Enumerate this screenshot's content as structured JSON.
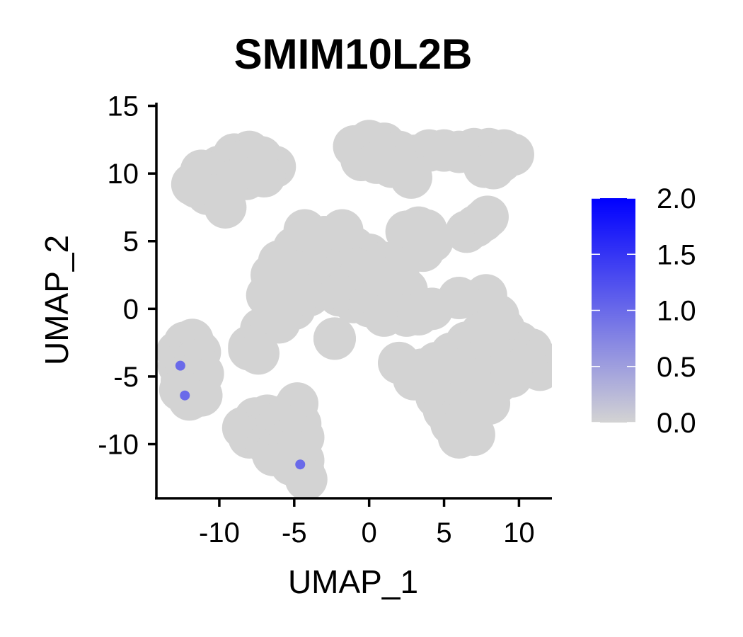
{
  "chart_data": {
    "type": "scatter",
    "title": "SMIM10L2B",
    "xlabel": "UMAP_1",
    "ylabel": "UMAP_2",
    "xlim": [
      -14.2,
      12.2
    ],
    "ylim": [
      -14.0,
      15.5
    ],
    "xticks": [
      -10,
      -5,
      0,
      5,
      10
    ],
    "yticks": [
      15,
      10,
      5,
      0,
      -5,
      -10
    ],
    "xtick_labels": [
      "-10",
      "-5",
      "0",
      "5",
      "10"
    ],
    "ytick_labels": [
      "15",
      "10",
      "5",
      "0",
      "-5",
      "-10"
    ],
    "grid": false,
    "legend_position": "right",
    "colorbar": {
      "min": 0.0,
      "max": 2.0,
      "ticks": [
        2.0,
        1.5,
        1.0,
        0.5,
        0.0
      ],
      "tick_labels": [
        "2.0",
        "1.5",
        "1.0",
        "0.5",
        "0.0"
      ],
      "color_low": "#d3d3d3",
      "color_high": "#0000ff"
    },
    "background_color": "#d3d3d3",
    "clusters": [
      {
        "x": [
          -11.0,
          -10.0,
          -9.0,
          -8.0,
          -7.2,
          -6.3,
          -11.5,
          -10.5,
          -9.5,
          -8.5,
          -7.5,
          -11.2,
          -10.2,
          -9.2,
          -8.2,
          -10.8,
          -9.8,
          -7.0,
          -11.8,
          -9.6
        ],
        "y": [
          9.5,
          10.5,
          11.4,
          11.6,
          11.2,
          10.5,
          9.0,
          10.0,
          10.6,
          10.9,
          10.8,
          10.2,
          9.8,
          9.4,
          9.6,
          8.5,
          8.2,
          9.8,
          9.2,
          7.5
        ]
      },
      {
        "x": [
          -1.0,
          0.0,
          1.0,
          2.0,
          3.0,
          4.0,
          5.0,
          6.0,
          7.0,
          8.0,
          9.0,
          9.6,
          -0.5,
          0.5,
          1.5,
          2.5,
          2.8,
          7.7,
          8.3,
          8.8
        ],
        "y": [
          12.0,
          12.4,
          12.2,
          11.6,
          11.3,
          11.7,
          11.7,
          11.6,
          11.8,
          11.8,
          11.7,
          11.4,
          11.0,
          10.8,
          10.5,
          10.2,
          9.7,
          10.5,
          10.4,
          10.9
        ]
      },
      {
        "x": [
          -6.5,
          -6.0,
          -5.0,
          -4.0,
          -3.0,
          -2.0,
          -1.0,
          0.0,
          1.0,
          2.0,
          -5.5,
          -4.5,
          -3.5,
          -2.5,
          -1.5,
          -0.5,
          0.5,
          1.5,
          2.5,
          -6.8,
          -5.8,
          -7.2,
          -8.0,
          -6.0,
          -5.0,
          -4.0,
          -3.0,
          -2.0,
          -1.0,
          0.0,
          1.0,
          2.5,
          3.3,
          -4.3,
          -1.8,
          -2.3
        ],
        "y": [
          2.5,
          3.5,
          4.5,
          5.0,
          5.3,
          5.2,
          4.5,
          4.0,
          3.4,
          3.2,
          2.0,
          3.0,
          3.8,
          4.0,
          3.3,
          2.8,
          2.4,
          2.0,
          1.4,
          1.0,
          0.5,
          -1.5,
          -3.0,
          -1.0,
          0.0,
          1.0,
          1.5,
          1.0,
          0.5,
          0.2,
          -0.5,
          -0.5,
          -0.4,
          5.8,
          5.8,
          -2.2
        ]
      },
      {
        "x": [
          2.5,
          3.3,
          3.8,
          4.2,
          2.9,
          3.6
        ],
        "y": [
          5.7,
          6.0,
          5.8,
          5.0,
          4.4,
          4.3
        ]
      },
      {
        "x": [
          6.5,
          7.1,
          7.6,
          7.9
        ],
        "y": [
          5.7,
          6.1,
          6.5,
          6.8
        ]
      },
      {
        "x": [
          3.5,
          4.5,
          5.5,
          6.5,
          7.5,
          8.0,
          9.0,
          10.0,
          10.8,
          11.3,
          11.4,
          3.0,
          4.0,
          5.0,
          6.0,
          7.0,
          8.5,
          9.5,
          10.5,
          4.5,
          5.5,
          6.5,
          7.5,
          8.5,
          9.5,
          5.0,
          6.0,
          7.0,
          8.0,
          5.5,
          6.5,
          6.0,
          7.0,
          6.5,
          7.8,
          8.6,
          6.0,
          4.8
        ],
        "y": [
          -4.5,
          -4.0,
          -3.3,
          -2.5,
          -1.8,
          -1.0,
          -1.5,
          -2.5,
          -3.0,
          -3.8,
          -4.5,
          -5.2,
          -5.5,
          -5.0,
          -4.5,
          -4.0,
          -3.5,
          -3.8,
          -4.2,
          -6.5,
          -6.8,
          -6.5,
          -6.0,
          -5.5,
          -5.0,
          -7.5,
          -8.0,
          -7.5,
          -7.0,
          -8.5,
          -9.0,
          -9.5,
          -9.3,
          -8.0,
          1.0,
          -0.5,
          0.8,
          -4.0
        ]
      },
      {
        "x": [
          -12.8,
          -12.3,
          -11.8,
          -11.3,
          -12.7,
          -12.2,
          -11.6,
          -11.1,
          -12.5,
          -12.0,
          -11.4,
          -12.2,
          -11.7,
          -11.2,
          -12.6,
          -12.0
        ],
        "y": [
          -3.2,
          -2.5,
          -2.3,
          -3.2,
          -4.2,
          -4.0,
          -3.8,
          -4.8,
          -5.3,
          -5.0,
          -5.4,
          -6.2,
          -6.0,
          -6.4,
          -6.0,
          -6.7
        ]
      },
      {
        "x": [
          -8.4,
          -7.6,
          -6.8,
          -6.0,
          -5.2,
          -4.8,
          -8.0,
          -7.2,
          -6.4,
          -5.6,
          -4.6,
          -6.8,
          -6.0,
          -5.2,
          -4.4,
          -6.4,
          -5.6,
          -4.8,
          -4.4,
          -5.2,
          -4.4,
          -4.2
        ],
        "y": [
          -8.8,
          -8.1,
          -7.9,
          -8.4,
          -7.6,
          -7.0,
          -9.5,
          -9.3,
          -9.0,
          -9.2,
          -8.5,
          -10.0,
          -10.1,
          -9.8,
          -9.5,
          -10.8,
          -11.0,
          -10.6,
          -11.2,
          -11.5,
          -12.0,
          -12.6
        ]
      },
      {
        "x": [
          -8.0,
          -7.4
        ],
        "y": [
          -2.8,
          -3.3
        ]
      },
      {
        "x": [
          -2.3,
          4.2,
          2.0
        ],
        "y": [
          -2.2,
          0.0,
          -4.0
        ]
      }
    ],
    "expressing_points": [
      {
        "x": [
          -12.6,
          -12.3,
          -4.6
        ],
        "y": [
          -4.2,
          -6.4,
          -11.5
        ],
        "values": [
          1.0,
          1.0,
          1.0
        ]
      }
    ]
  }
}
